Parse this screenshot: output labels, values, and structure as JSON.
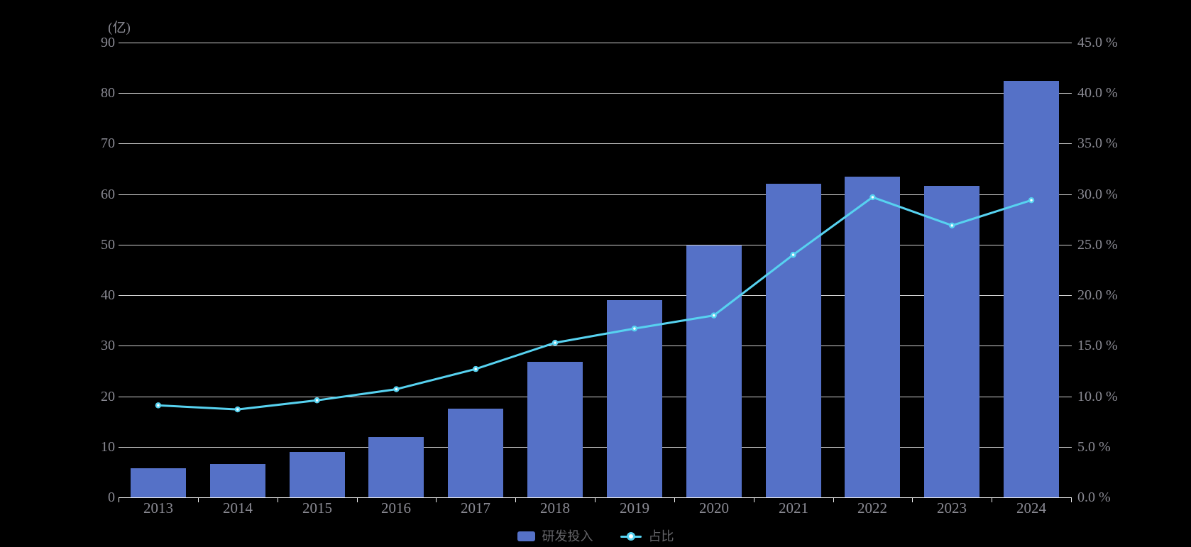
{
  "unit_label": "(亿)",
  "legend": {
    "bar_label": "研发投入",
    "line_label": "占比"
  },
  "colors": {
    "background": "#000000",
    "bar": "#5571c7",
    "line": "#57d2f0",
    "marker_center": "#ffffff",
    "grid": "#e3e3e3",
    "axis_text": "#8a8a93",
    "legend_text": "#646468"
  },
  "chart_data": {
    "type": "bar",
    "subtype": "bar-line-combo",
    "categories": [
      "2013",
      "2014",
      "2015",
      "2016",
      "2017",
      "2018",
      "2019",
      "2020",
      "2021",
      "2022",
      "2023",
      "2024"
    ],
    "series": [
      {
        "name": "研发投入",
        "type": "bar",
        "axis": "left",
        "unit": "亿",
        "values": [
          5.7,
          6.6,
          9.0,
          12.0,
          17.6,
          26.8,
          39.0,
          49.9,
          62.0,
          63.4,
          61.6,
          82.4
        ]
      },
      {
        "name": "占比",
        "type": "line",
        "axis": "right",
        "unit": "%",
        "values": [
          9.1,
          8.7,
          9.6,
          10.7,
          12.7,
          15.3,
          16.7,
          18.0,
          24.0,
          29.7,
          26.9,
          29.4
        ]
      }
    ],
    "title": "",
    "xlabel": "",
    "ylabel_left": "(亿)",
    "ylabel_right": "%",
    "y_left": {
      "min": 0,
      "max": 90,
      "tick_labels": [
        "0",
        "10",
        "20",
        "30",
        "40",
        "50",
        "60",
        "70",
        "80",
        "90"
      ]
    },
    "y_right": {
      "min": 0,
      "max": 45,
      "tick_labels": [
        "0.0 %",
        "5.0 %",
        "10.0 %",
        "15.0 %",
        "20.0 %",
        "25.0 %",
        "30.0 %",
        "35.0 %",
        "40.0 %",
        "45.0 %"
      ]
    },
    "grid": true,
    "legend_position": "bottom-center",
    "background": "black"
  }
}
